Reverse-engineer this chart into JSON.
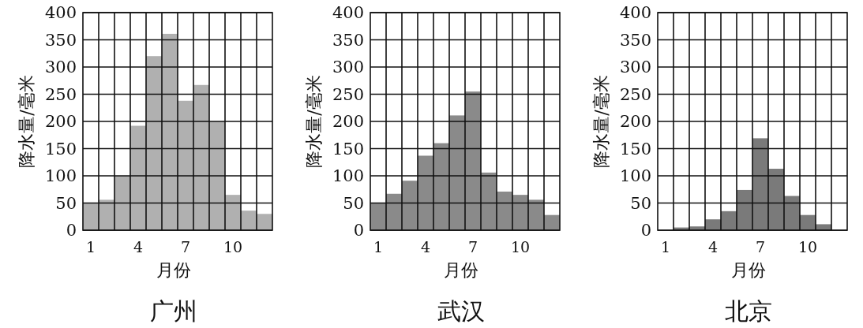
{
  "chart_data": [
    {
      "type": "bar",
      "title": "广州",
      "xlabel": "月份",
      "ylabel": "降水量/毫米",
      "categories": [
        "1",
        null,
        null,
        "4",
        null,
        null,
        "7",
        null,
        null,
        "10",
        null,
        null
      ],
      "values": [
        50,
        56,
        100,
        192,
        320,
        361,
        238,
        267,
        200,
        65,
        36,
        30
      ],
      "color": "#b0b0b0",
      "ylim": [
        0,
        400
      ],
      "yticks": [
        0,
        50,
        100,
        150,
        200,
        250,
        300,
        350,
        400
      ],
      "grid": true
    },
    {
      "type": "bar",
      "title": "武汉",
      "xlabel": "月份",
      "ylabel": "降水量/毫米",
      "categories": [
        "1",
        null,
        null,
        "4",
        null,
        null,
        "7",
        null,
        null,
        "10",
        null,
        null
      ],
      "values": [
        50,
        67,
        91,
        137,
        160,
        211,
        255,
        106,
        71,
        65,
        56,
        28
      ],
      "color": "#8a8a8a",
      "ylim": [
        0,
        400
      ],
      "yticks": [
        0,
        50,
        100,
        150,
        200,
        250,
        300,
        350,
        400
      ],
      "grid": true
    },
    {
      "type": "bar",
      "title": "北京",
      "xlabel": "月份",
      "ylabel": "降水量/毫米",
      "categories": [
        "1",
        null,
        null,
        "4",
        null,
        null,
        "7",
        null,
        null,
        "10",
        null,
        null
      ],
      "values": [
        0,
        5,
        7,
        20,
        35,
        74,
        169,
        113,
        63,
        28,
        11,
        0
      ],
      "color": "#7a7a7a",
      "ylim": [
        0,
        400
      ],
      "yticks": [
        0,
        50,
        100,
        150,
        200,
        250,
        300,
        350,
        400
      ],
      "grid": true
    }
  ]
}
